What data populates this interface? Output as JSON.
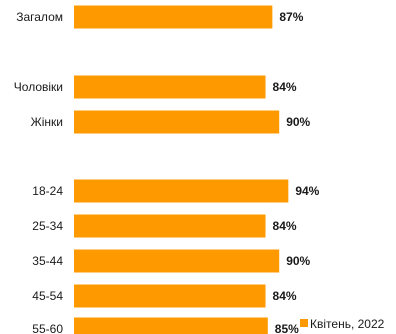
{
  "chart_data": {
    "type": "bar",
    "orientation": "horizontal",
    "categories": [
      "Загалом",
      "Чоловіки",
      "Жінки",
      "18-24",
      "25-34",
      "35-44",
      "45-54",
      "55-60"
    ],
    "series": [
      {
        "name": "Квітень, 2022",
        "values": [
          87,
          84,
          90,
          94,
          84,
          90,
          84,
          85
        ],
        "labels": [
          "87%",
          "84%",
          "90%",
          "94%",
          "84%",
          "90%",
          "84%",
          "85%"
        ],
        "color": "#ff9900"
      }
    ],
    "title": "",
    "xlabel": "",
    "ylabel": "",
    "grid": false,
    "legend": "bottom-right"
  }
}
